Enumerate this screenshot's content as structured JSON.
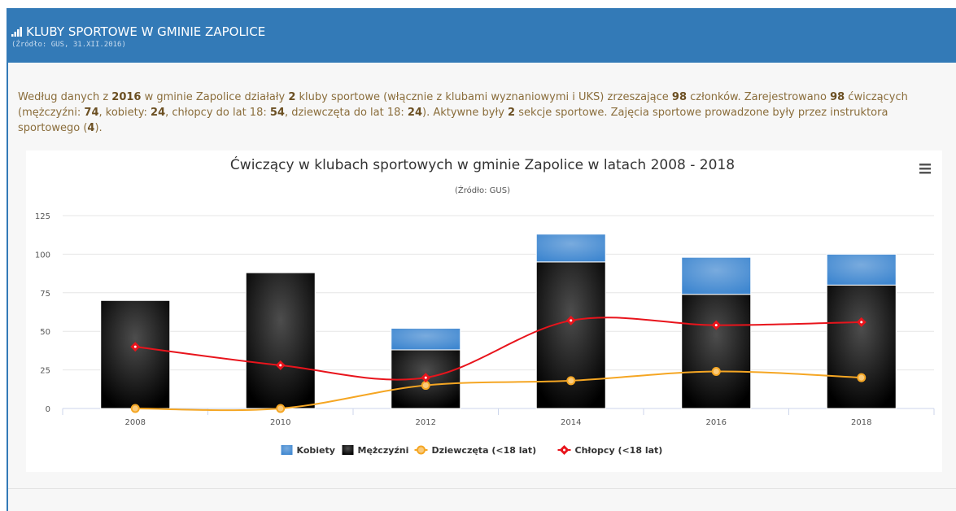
{
  "header": {
    "title": "KLUBY SPORTOWE W GMINIE ZAPOLICE",
    "source": "(Źródło: GUS, 31.XII.2016)"
  },
  "paragraph": [
    "Według danych z ",
    "2016",
    " w gminie Zapolice działały ",
    "2",
    " kluby sportowe (włącznie z klubami wyznaniowymi i UKS) zrzeszające ",
    "98",
    " członków. Zarejestrowano ",
    "98",
    " ćwiczących (mężczyźni: ",
    "74",
    ", kobiety: ",
    "24",
    ", chłopcy do lat 18: ",
    "54",
    ", dziewczęta do lat 18: ",
    "24",
    "). Aktywne były ",
    "2",
    " sekcje sportowe. Zajęcia sportowe prowadzone były przez instruktora sportowego (",
    "4",
    ")."
  ],
  "chart_data": {
    "type": "stacked-bar-line",
    "title": "Ćwiczący w klubach sportowych w gminie Zapolice w latach 2008 - 2018",
    "subtitle": "(Źródło: GUS)",
    "categories": [
      "2008",
      "2010",
      "2012",
      "2014",
      "2016",
      "2018"
    ],
    "ylim": [
      0,
      125
    ],
    "yticks": [
      0,
      25,
      50,
      75,
      100,
      125
    ],
    "grid": true,
    "series": [
      {
        "name": "Kobiety",
        "type": "bar",
        "color": "#3f87d0",
        "values": [
          0,
          0,
          14,
          18,
          24,
          20
        ]
      },
      {
        "name": "Mężczyźni",
        "type": "bar",
        "color": "#000000",
        "values": [
          70,
          88,
          38,
          95,
          74,
          80
        ]
      },
      {
        "name": "Dziewczęta (<18 lat)",
        "type": "line",
        "marker": "circle",
        "color": "#f5a623",
        "values": [
          0,
          0,
          15,
          18,
          24,
          20
        ]
      },
      {
        "name": "Chłopcy (<18 lat)",
        "type": "line",
        "marker": "diamond",
        "color": "#e8141c",
        "values": [
          40,
          28,
          20,
          57,
          54,
          56
        ]
      }
    ]
  }
}
